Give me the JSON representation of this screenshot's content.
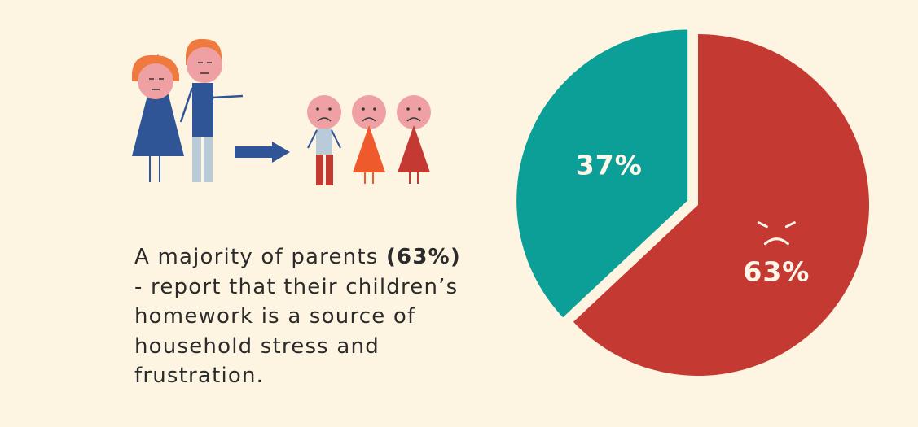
{
  "caption": {
    "before": "A majority of parents ",
    "highlight": "(63%)",
    "after": " - report that their children’s homework is a source of household stress and frustration."
  },
  "chart_data": {
    "type": "pie",
    "slices": [
      {
        "label": "63%",
        "value": 63,
        "color": "#c43a33",
        "exploded": false,
        "face": "angry"
      },
      {
        "label": "37%",
        "value": 37,
        "color": "#0b9f97",
        "exploded": true
      }
    ]
  },
  "illustration": {
    "colors": {
      "hair": "#ef7a3f",
      "skin": "#efa0a3",
      "blue": "#2f5596",
      "light_blue": "#b9cbd8",
      "red": "#c43a33",
      "orange": "#ef5a2d"
    }
  }
}
